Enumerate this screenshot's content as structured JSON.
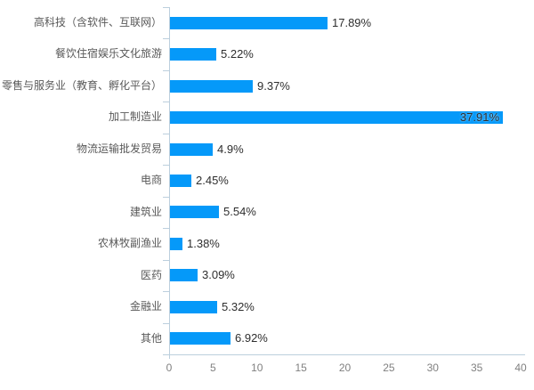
{
  "chart_data": {
    "type": "bar",
    "orientation": "horizontal",
    "title": "",
    "xlabel": "",
    "ylabel": "",
    "categories": [
      "高科技（含软件、互联网）",
      "餐饮住宿娱乐文化旅游",
      "零售与服务业（教育、孵化平台）",
      "加工制造业",
      "物流运输批发贸易",
      "电商",
      "建筑业",
      "农林牧副渔业",
      "医药",
      "金融业",
      "其他"
    ],
    "values": [
      17.89,
      5.22,
      9.37,
      37.91,
      4.9,
      2.45,
      5.54,
      1.38,
      3.09,
      5.32,
      6.92
    ],
    "value_labels": [
      "17.89%",
      "5.22%",
      "9.37%",
      "37.91%",
      "4.9%",
      "2.45%",
      "5.54%",
      "1.38%",
      "3.09%",
      "5.32%",
      "6.92%"
    ],
    "inside_label_index": 3,
    "xlim": [
      0,
      40
    ],
    "x_ticks": [
      "0",
      "5",
      "10",
      "15",
      "20",
      "25",
      "30",
      "35",
      "40"
    ],
    "grid": false,
    "legend": null,
    "colors": {
      "bar": "#0599f9",
      "axis": "#bccfdd",
      "category_label": "#595959",
      "value_label": "#2e2e2e",
      "tick_label": "#808080",
      "background": "#ffffff"
    }
  }
}
